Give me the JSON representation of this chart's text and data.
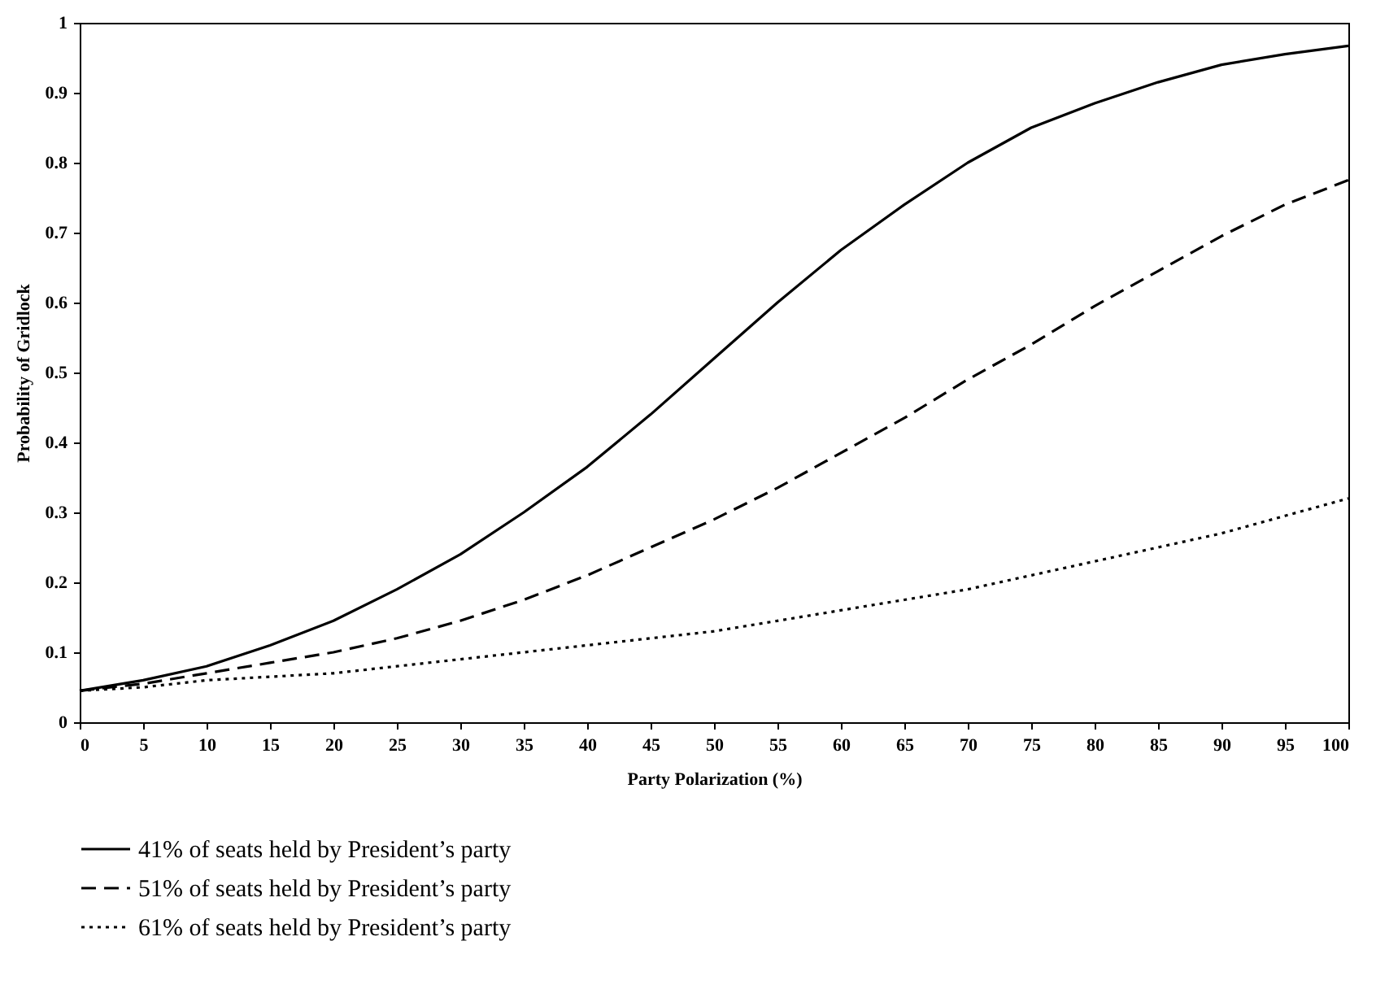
{
  "chart_data": {
    "type": "line",
    "xlabel": "Party Polarization (%)",
    "ylabel": "Probability of Gridlock",
    "x": [
      0,
      5,
      10,
      15,
      20,
      25,
      30,
      35,
      40,
      45,
      50,
      55,
      60,
      65,
      70,
      75,
      80,
      85,
      90,
      95,
      100
    ],
    "series": [
      {
        "name": "41% of seats held by President’s party",
        "color": "#000000",
        "line_style": "solid",
        "values": [
          0.045,
          0.06,
          0.08,
          0.11,
          0.145,
          0.19,
          0.24,
          0.3,
          0.365,
          0.44,
          0.52,
          0.6,
          0.675,
          0.74,
          0.8,
          0.85,
          0.885,
          0.915,
          0.94,
          0.955,
          0.967
        ]
      },
      {
        "name": "51% of seats held by President’s party",
        "color": "#000000",
        "line_style": "dashed",
        "values": [
          0.045,
          0.055,
          0.07,
          0.085,
          0.1,
          0.12,
          0.145,
          0.175,
          0.21,
          0.25,
          0.29,
          0.335,
          0.385,
          0.435,
          0.49,
          0.54,
          0.595,
          0.645,
          0.695,
          0.74,
          0.775
        ]
      },
      {
        "name": "61% of seats held by President’s party",
        "color": "#000000",
        "line_style": "dotted",
        "values": [
          0.045,
          0.05,
          0.06,
          0.065,
          0.07,
          0.08,
          0.09,
          0.1,
          0.11,
          0.12,
          0.13,
          0.145,
          0.16,
          0.175,
          0.19,
          0.21,
          0.23,
          0.25,
          0.27,
          0.295,
          0.32
        ]
      }
    ],
    "xlim": [
      0,
      100
    ],
    "xticks": [
      0,
      5,
      10,
      15,
      20,
      25,
      30,
      35,
      40,
      45,
      50,
      55,
      60,
      65,
      70,
      75,
      80,
      85,
      90,
      95,
      100
    ],
    "ylim": [
      0,
      1
    ],
    "yticks": [
      0,
      0.1,
      0.2,
      0.3,
      0.4,
      0.5,
      0.6,
      0.7,
      0.8,
      0.9,
      1
    ],
    "grid": false,
    "legend": "bottom",
    "marker": "none"
  }
}
